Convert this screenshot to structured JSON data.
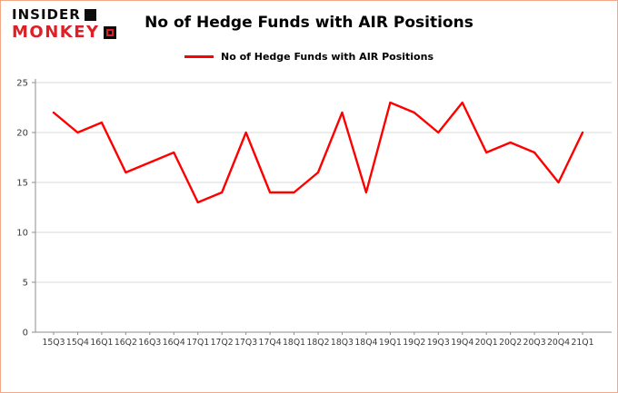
{
  "logo": {
    "line1": "INSIDER",
    "line2": "MONKEY"
  },
  "header": {
    "title": "No of Hedge Funds with AIR Positions"
  },
  "legend": {
    "label": "No of Hedge Funds with AIR Positions",
    "color": "#ff0000"
  },
  "colors": {
    "line": "#ff0000",
    "grid": "#d9d9d9",
    "axis": "#8c8c8c",
    "tick_text": "#3a3a3a",
    "logo_red": "#dd1f26",
    "frame_border": "#f4a88a"
  },
  "chart_data": {
    "type": "line",
    "title": "No of Hedge Funds with AIR Positions",
    "xlabel": "",
    "ylabel": "",
    "categories": [
      "15Q3",
      "15Q4",
      "16Q1",
      "16Q2",
      "16Q3",
      "16Q4",
      "17Q1",
      "17Q2",
      "17Q3",
      "17Q4",
      "18Q1",
      "18Q2",
      "18Q3",
      "18Q4",
      "19Q1",
      "19Q2",
      "19Q3",
      "19Q4",
      "20Q1",
      "20Q2",
      "20Q3",
      "20Q4",
      "21Q1"
    ],
    "values": [
      22,
      20,
      21,
      16,
      17,
      18,
      13,
      14,
      20,
      14,
      14,
      16,
      22,
      14,
      23,
      22,
      20,
      23,
      18,
      19,
      18,
      15,
      20
    ],
    "ylim": [
      0,
      25
    ],
    "yticks": [
      0,
      5,
      10,
      15,
      20,
      25
    ],
    "grid": true,
    "legend_position": "top",
    "series_color": "#ff0000"
  }
}
